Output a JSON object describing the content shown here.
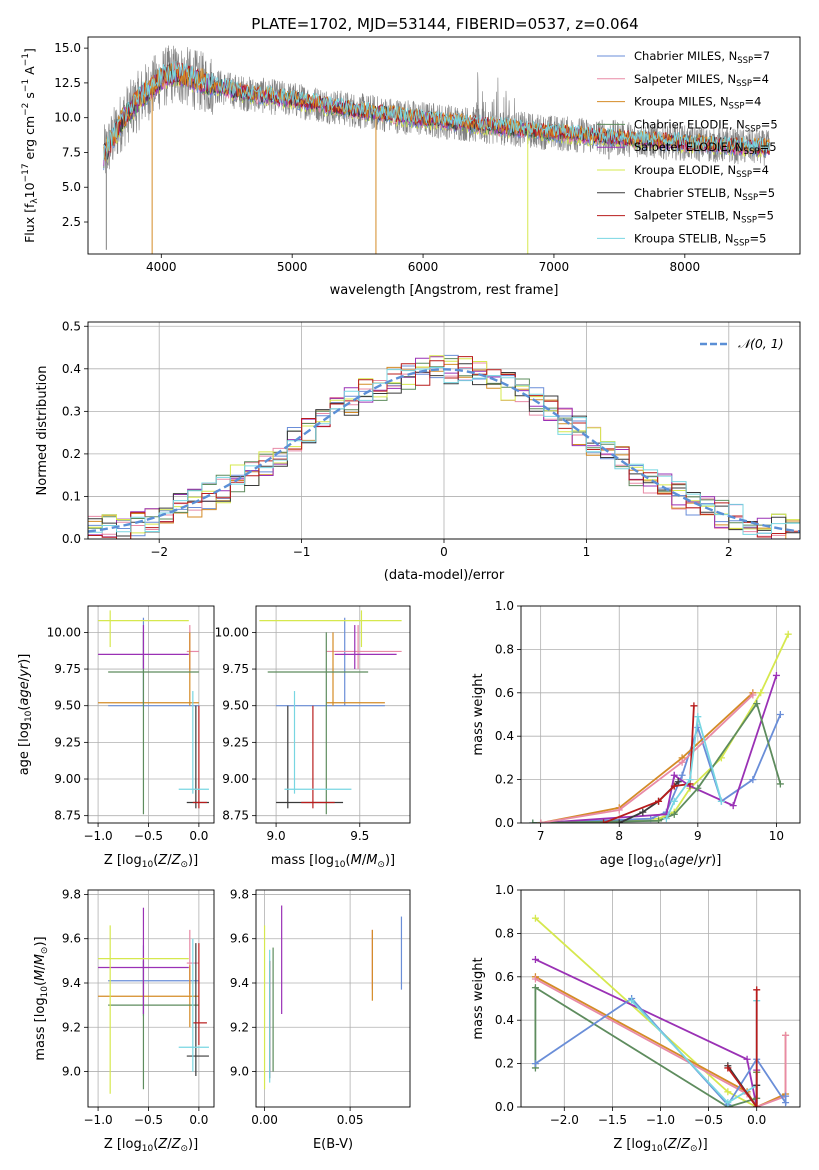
{
  "title": "PLATE=1702, MJD=53144, FIBERID=0537, z=0.064",
  "colors": {
    "ChMI": "#6a8ed8",
    "SaMI": "#e88aa6",
    "KrMI": "#d48b26",
    "ChEL": "#5e8c5e",
    "SaEL": "#9a31b5",
    "KrEL": "#d6e84e",
    "ChST": "#3a3a3a",
    "SaST": "#b81c1c",
    "KrST": "#78d6e2",
    "data": "#808080",
    "normal": "#5b8fd6"
  },
  "chart_data": [
    {
      "id": "spectrum",
      "type": "line",
      "title": "PLATE=1702, MJD=53144, FIBERID=0537, z=0.064",
      "xlabel": "wavelength [Angstrom, rest frame]",
      "ylabel": "Flux [f_λ10^-17 erg cm^-2 s^-1 A^-1]",
      "xlim": [
        3440,
        8880
      ],
      "ylim": [
        0.2,
        15.8
      ],
      "xticks": [
        4000,
        5000,
        6000,
        7000,
        8000
      ],
      "yticks": [
        2.5,
        5.0,
        7.5,
        10.0,
        12.5,
        15.0
      ],
      "grid": false,
      "legend_position": "upper right",
      "legend": [
        {
          "key": "ChMI",
          "label": "Chabrier MILES, N",
          "sub": "SSP",
          "n": "=7"
        },
        {
          "key": "SaMI",
          "label": "Salpeter MILES, N",
          "sub": "SSP",
          "n": "=4"
        },
        {
          "key": "KrMI",
          "label": "Kroupa MILES, N",
          "sub": "SSP",
          "n": "=4"
        },
        {
          "key": "ChEL",
          "label": "Chabrier ELODIE, N",
          "sub": "SSP",
          "n": "=5"
        },
        {
          "key": "SaEL",
          "label": "Salpeter ELODIE, N",
          "sub": "SSP",
          "n": "=5"
        },
        {
          "key": "KrEL",
          "label": "Kroupa ELODIE, N",
          "sub": "SSP",
          "n": "=4"
        },
        {
          "key": "ChST",
          "label": "Chabrier STELIB, N",
          "sub": "SSP",
          "n": "=5"
        },
        {
          "key": "SaST",
          "label": "Salpeter STELIB, N",
          "sub": "SSP",
          "n": "=5"
        },
        {
          "key": "KrST",
          "label": "Kroupa STELIB, N",
          "sub": "SSP",
          "n": "=5"
        }
      ],
      "continuum": [
        [
          3560,
          7.2
        ],
        [
          3700,
          9.8
        ],
        [
          3850,
          11.5
        ],
        [
          4000,
          12.8
        ],
        [
          4100,
          13.2
        ],
        [
          4300,
          12.6
        ],
        [
          4600,
          11.8
        ],
        [
          5000,
          11.3
        ],
        [
          5500,
          10.5
        ],
        [
          6000,
          9.9
        ],
        [
          6500,
          9.4
        ],
        [
          7000,
          8.9
        ],
        [
          7400,
          8.6
        ],
        [
          7800,
          8.3
        ],
        [
          8300,
          8.0
        ],
        [
          8650,
          7.8
        ]
      ],
      "data_noise_scale": 1.3,
      "dips": [
        {
          "model": "KrMI",
          "x": 3930,
          "y": 0.2
        },
        {
          "model": "KrMI",
          "x": 5640,
          "y": 0.2
        },
        {
          "model": "KrEL",
          "x": 6800,
          "y": 0.2
        },
        {
          "model": "data",
          "x": 3580,
          "y": 0.5
        },
        {
          "model": "data",
          "x": 7420,
          "y": 7.0
        }
      ]
    },
    {
      "id": "residuals",
      "type": "histogram",
      "xlabel": "(data-model)/error",
      "ylabel": "Normed distribution",
      "xlim": [
        -2.5,
        2.5
      ],
      "ylim": [
        0.0,
        0.51
      ],
      "xticks": [
        -2,
        -1,
        0,
        1,
        2
      ],
      "yticks": [
        0.0,
        0.1,
        0.2,
        0.3,
        0.4,
        0.5
      ],
      "grid": true,
      "bin_width": 0.1,
      "normal_label": "𝒩(0, 1)",
      "legend_position": "upper right"
    },
    {
      "id": "age_vs_Z",
      "type": "errorbar",
      "xlabel": "Z [log10(Z/Z⊙)]",
      "ylabel": "age  [log10(age/yr)]",
      "xlim": [
        -1.1,
        0.15
      ],
      "ylim": [
        8.7,
        10.18
      ],
      "xticks": [
        -1.0,
        -0.5,
        0.0
      ],
      "yticks": [
        8.75,
        9.0,
        9.25,
        9.5,
        9.75,
        10.0
      ],
      "grid": true
    },
    {
      "id": "age_vs_mass",
      "type": "errorbar",
      "xlabel": "mass [log10(M/M⊙)]",
      "ylabel": "",
      "xlim": [
        8.88,
        9.8
      ],
      "ylim": [
        8.7,
        10.18
      ],
      "xticks": [
        9.0,
        9.5
      ],
      "yticks": [
        8.75,
        9.0,
        9.25,
        9.5,
        9.75,
        10.0
      ],
      "grid": true
    },
    {
      "id": "weight_vs_age",
      "type": "line",
      "xlabel": "age  [log10(age/yr)]",
      "ylabel": "mass weight",
      "xlim": [
        6.75,
        10.3
      ],
      "ylim": [
        0.0,
        1.0
      ],
      "xticks": [
        7,
        8,
        9,
        10
      ],
      "yticks": [
        0.0,
        0.2,
        0.4,
        0.6,
        0.8,
        1.0
      ],
      "grid": true,
      "series": [
        {
          "key": "KrEL",
          "x": [
            7.0,
            8.5,
            8.7,
            8.9,
            9.3,
            9.8,
            10.15
          ],
          "y": [
            0.0,
            0.02,
            0.05,
            0.16,
            0.3,
            0.6,
            0.87
          ]
        },
        {
          "key": "ChMI",
          "x": [
            6.9,
            8.4,
            8.6,
            8.8,
            9.0,
            9.3,
            9.7,
            10.05
          ],
          "y": [
            0.0,
            0.02,
            0.05,
            0.22,
            0.44,
            0.1,
            0.2,
            0.5
          ]
        },
        {
          "key": "SaEL",
          "x": [
            7.0,
            8.6,
            8.7,
            8.9,
            9.45,
            10.0
          ],
          "y": [
            0.0,
            0.04,
            0.22,
            0.17,
            0.08,
            0.68
          ]
        },
        {
          "key": "ChEL",
          "x": [
            6.9,
            8.5,
            8.7,
            9.0,
            9.75,
            10.05
          ],
          "y": [
            0.0,
            0.01,
            0.04,
            0.16,
            0.55,
            0.18
          ]
        },
        {
          "key": "KrMI",
          "x": [
            7.0,
            8.0,
            8.8,
            9.7
          ],
          "y": [
            0.0,
            0.07,
            0.3,
            0.6
          ]
        },
        {
          "key": "SaMI",
          "x": [
            7.0,
            8.0,
            8.8,
            9.7
          ],
          "y": [
            0.0,
            0.06,
            0.28,
            0.59
          ]
        },
        {
          "key": "ChST",
          "x": [
            8.0,
            8.3,
            8.5,
            8.75
          ],
          "y": [
            0.0,
            0.05,
            0.1,
            0.19
          ]
        },
        {
          "key": "SaST",
          "x": [
            7.8,
            8.5,
            8.7,
            8.9,
            8.95
          ],
          "y": [
            0.0,
            0.1,
            0.17,
            0.18,
            0.54
          ]
        },
        {
          "key": "KrST",
          "x": [
            8.6,
            8.7,
            8.9,
            9.0,
            9.3
          ],
          "y": [
            0.02,
            0.1,
            0.2,
            0.49,
            0.1
          ]
        }
      ]
    },
    {
      "id": "mass_vs_Z",
      "type": "errorbar",
      "xlabel": "Z [log10(Z/Z⊙)]",
      "ylabel": "mass [log10(M/M⊙)]",
      "xlim": [
        -1.1,
        0.15
      ],
      "ylim": [
        8.84,
        9.82
      ],
      "xticks": [
        -1.0,
        -0.5,
        0.0
      ],
      "yticks": [
        9.0,
        9.2,
        9.4,
        9.6,
        9.8
      ],
      "grid": true
    },
    {
      "id": "mass_vs_EBV",
      "type": "errorbar",
      "xlabel": "E(B-V)",
      "ylabel": "",
      "xlim": [
        -0.005,
        0.085
      ],
      "ylim": [
        8.84,
        9.82
      ],
      "xticks": [
        0.0,
        0.05
      ],
      "yticks": [
        9.0,
        9.2,
        9.4,
        9.6,
        9.8
      ],
      "grid": true
    },
    {
      "id": "weight_vs_Z",
      "type": "line",
      "xlabel": "Z [log10(Z/Z⊙)]",
      "ylabel": "mass weight",
      "xlim": [
        -2.45,
        0.45
      ],
      "ylim": [
        0.0,
        1.0
      ],
      "xticks": [
        -2.0,
        -1.5,
        -1.0,
        -0.5,
        0.0
      ],
      "yticks": [
        0.0,
        0.2,
        0.4,
        0.6,
        0.8,
        1.0
      ],
      "grid": true,
      "series": [
        {
          "key": "KrEL",
          "x": [
            -2.3,
            -0.3,
            0.0,
            0.0
          ],
          "y": [
            0.87,
            0.07,
            0.0,
            0.16
          ]
        },
        {
          "key": "SaEL",
          "x": [
            -2.3,
            -0.1,
            0.0,
            0.0
          ],
          "y": [
            0.68,
            0.22,
            0.0,
            0.17
          ]
        },
        {
          "key": "KrMI",
          "x": [
            -2.3,
            -0.1,
            0.0,
            0.3,
            0.3
          ],
          "y": [
            0.6,
            0.07,
            0.0,
            0.06,
            0.33
          ]
        },
        {
          "key": "SaMI",
          "x": [
            -2.3,
            -0.1,
            0.0,
            0.3,
            0.3
          ],
          "y": [
            0.59,
            0.06,
            0.0,
            0.05,
            0.33
          ]
        },
        {
          "key": "ChEL",
          "x": [
            -2.3,
            -2.3,
            -0.3,
            0.0,
            0.0
          ],
          "y": [
            0.18,
            0.55,
            0.0,
            0.04,
            0.16
          ]
        },
        {
          "key": "ChMI",
          "x": [
            -2.3,
            -1.3,
            -0.3,
            0.0,
            0.3,
            0.3
          ],
          "y": [
            0.2,
            0.5,
            0.01,
            0.22,
            0.02,
            0.05
          ]
        },
        {
          "key": "KrST",
          "x": [
            -1.3,
            -0.3,
            0.0,
            0.0
          ],
          "y": [
            0.49,
            0.02,
            0.1,
            0.49
          ]
        },
        {
          "key": "ChST",
          "x": [
            -0.3,
            0.0,
            0.0
          ],
          "y": [
            0.19,
            0.0,
            0.1
          ]
        },
        {
          "key": "SaST",
          "x": [
            -0.3,
            0.0,
            0.0
          ],
          "y": [
            0.18,
            0.0,
            0.54
          ]
        }
      ]
    }
  ],
  "errorbars": {
    "ChMI": {
      "Z": -0.55,
      "Zerr": [
        -0.9,
        0.0
      ],
      "age": 9.5,
      "ageErr": [
        9.5,
        10.1
      ],
      "mass": 9.41,
      "massErr": [
        9.25,
        9.57
      ],
      "massX": [
        9.0,
        9.65
      ],
      "ebv": 0.08,
      "ebvErr": [
        9.37,
        9.7
      ]
    },
    "SaMI": {
      "Z": -0.09,
      "Zerr": [
        -0.12,
        0.0
      ],
      "age": 9.87,
      "ageErr": [
        9.75,
        10.05
      ],
      "mass": 9.49,
      "massErr": [
        9.35,
        9.64
      ],
      "massX": [
        9.3,
        9.75
      ],
      "ebv": 0.063,
      "ebvErr": [
        9.37,
        9.64
      ]
    },
    "KrMI": {
      "Z": -0.09,
      "Zerr": [
        -1.0,
        0.0
      ],
      "age": 9.52,
      "ageErr": [
        9.5,
        10.0
      ],
      "mass": 9.34,
      "massErr": [
        9.2,
        9.48
      ],
      "massX": [
        9.3,
        9.65
      ],
      "ebv": 0.063,
      "ebvErr": [
        9.32,
        9.64
      ]
    },
    "ChEL": {
      "Z": -0.55,
      "Zerr": [
        -0.9,
        0.0
      ],
      "age": 9.73,
      "ageErr": [
        8.76,
        10.0
      ],
      "mass": 9.3,
      "massErr": [
        8.92,
        9.5
      ],
      "massX": [
        8.95,
        9.55
      ],
      "ebv": 0.005,
      "ebvErr": [
        9.0,
        9.56
      ]
    },
    "SaEL": {
      "Z": -0.55,
      "Zerr": [
        -1.0,
        -0.1
      ],
      "age": 9.85,
      "ageErr": [
        9.75,
        10.05
      ],
      "mass": 9.47,
      "massErr": [
        9.26,
        9.74
      ],
      "massX": [
        9.35,
        9.72
      ],
      "ebv": 0.01,
      "ebvErr": [
        9.26,
        9.75
      ]
    },
    "KrEL": {
      "Z": -0.88,
      "Zerr": [
        -1.0,
        -0.1
      ],
      "age": 10.08,
      "ageErr": [
        9.9,
        10.15
      ],
      "mass": 9.51,
      "massErr": [
        8.9,
        9.66
      ],
      "massX": [
        8.9,
        9.75
      ],
      "ebv": 0.0,
      "ebvErr": [
        8.92,
        9.66
      ]
    },
    "ChST": {
      "Z": -0.03,
      "Zerr": [
        -0.12,
        0.1
      ],
      "age": 8.84,
      "ageErr": [
        8.8,
        9.5
      ],
      "mass": 9.07,
      "massErr": [
        8.98,
        9.58
      ],
      "massX": [
        9.0,
        9.4
      ],
      "ebv": 0.003,
      "ebvErr": [
        8.97,
        9.5
      ]
    },
    "SaST": {
      "Z": 0.0,
      "Zerr": [
        -0.06,
        0.08
      ],
      "age": 8.84,
      "ageErr": [
        8.8,
        9.5
      ],
      "mass": 9.22,
      "massErr": [
        9.12,
        9.58
      ],
      "massX": [
        9.15,
        9.35
      ],
      "ebv": 0.003,
      "ebvErr": [
        9.0,
        9.5
      ]
    },
    "KrST": {
      "Z": -0.06,
      "Zerr": [
        -0.2,
        0.1
      ],
      "age": 8.93,
      "ageErr": [
        8.9,
        9.6
      ],
      "mass": 9.11,
      "massErr": [
        9.0,
        9.6
      ],
      "massX": [
        9.05,
        9.45
      ],
      "ebv": 0.003,
      "ebvErr": [
        8.95,
        9.55
      ]
    }
  }
}
